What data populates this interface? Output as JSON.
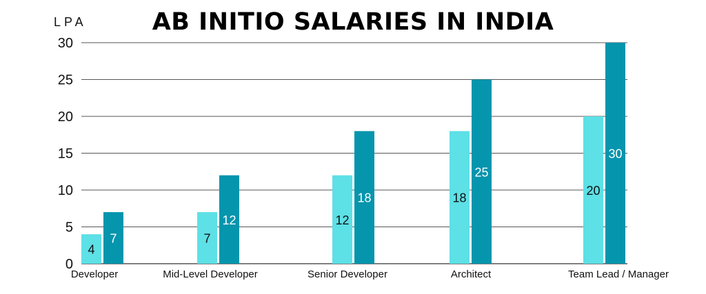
{
  "colors": {
    "light": "#5de0e6",
    "dark": "#0595ad",
    "grid": "#555555",
    "label_on_light": "#111111",
    "label_on_dark": "#ffffff"
  },
  "chart_data": {
    "type": "bar",
    "title": "AB INITIO SALARIES IN INDIA",
    "ylabel": "LPA",
    "xlabel": "",
    "categories": [
      "Developer",
      "Mid-Level Developer",
      "Senior Developer",
      "Architect",
      "Team Lead / Manager"
    ],
    "series": [
      {
        "values": [
          4,
          7,
          12,
          18,
          20
        ]
      },
      {
        "values": [
          7,
          12,
          18,
          25,
          30
        ]
      }
    ],
    "ylim": [
      0,
      30
    ],
    "yticks": [
      0,
      5,
      10,
      15,
      20,
      25,
      30
    ],
    "grid": true,
    "legend": "none"
  }
}
